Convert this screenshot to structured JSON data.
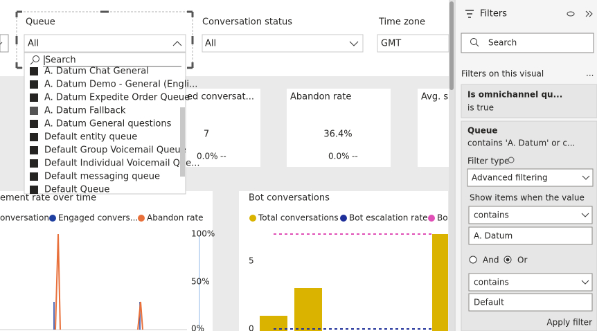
{
  "report": {
    "slicers": [
      {
        "title": "Queue",
        "value": "All"
      },
      {
        "title": "Conversation status",
        "value": "All"
      },
      {
        "title": "Time zone",
        "value": "GMT"
      }
    ],
    "dropdown": {
      "search": "Search",
      "items": [
        "A. Datum Chat General",
        "A. Datum Demo - General (Engli...",
        "A. Datum Expedite Order Queue",
        "A. Datum Fallback",
        "A. Datum General questions",
        "Default entity queue",
        "Default Group Voicemail Queue",
        "Default Individual Voicemail Que...",
        "Default messaging queue",
        "Default Queue"
      ]
    },
    "cards": [
      {
        "title": "ed conversat...",
        "value": "7",
        "change": "0.0%",
        "trend": "--"
      },
      {
        "title": "Abandon rate",
        "value": "36.4%",
        "change": "0.0%",
        "trend": "--"
      },
      {
        "title": "Avg. s"
      }
    ],
    "charts": [
      {
        "title": "ement rate over time",
        "legend": [
          "onversations",
          "Engaged convers...",
          "Abandon rate"
        ],
        "ticks": [
          "100%",
          "50%",
          "0%"
        ]
      },
      {
        "title": "Bot conversations",
        "legend": [
          "Total conversations",
          "Bot escalation rate",
          "Bo"
        ],
        "ticks": [
          "5",
          "0"
        ]
      }
    ]
  },
  "filters": {
    "title": "Filters",
    "search": "Search",
    "section": "Filters on this visual",
    "more": "...",
    "items": [
      {
        "name": "Is omnichannel qu...",
        "summary": "is true"
      },
      {
        "name": "Queue",
        "summary": "contains 'A. Datum' or c...",
        "filter_type_label": "Filter type",
        "filter_type": "Advanced filtering",
        "show_label": "Show items when the value",
        "condition1": "contains",
        "value1": "A. Datum",
        "and": "And",
        "or": "Or",
        "condition2": "contains",
        "value2": "Default",
        "apply": "Apply filter"
      }
    ]
  }
}
